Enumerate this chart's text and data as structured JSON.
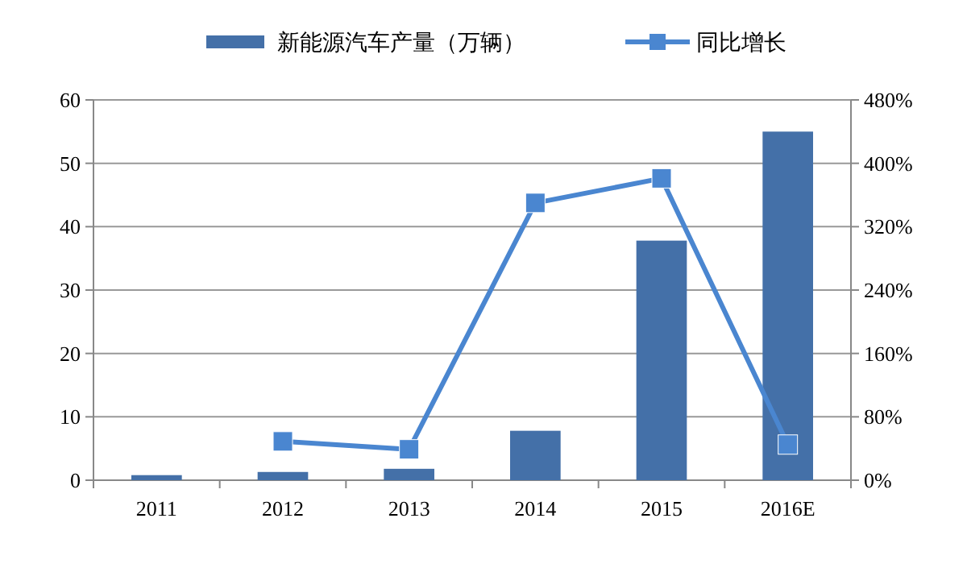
{
  "chart_data": {
    "type": "bar",
    "categories": [
      "2011",
      "2012",
      "2013",
      "2014",
      "2015",
      "2016E"
    ],
    "series": [
      {
        "name": "新能源汽车产量（万辆）",
        "color": "#4470a8",
        "values": [
          0.8,
          1.3,
          1.8,
          7.8,
          37.8,
          55
        ]
      },
      {
        "name": "同比增长",
        "type": "line",
        "axis": "y2",
        "color": "#4a86d0",
        "marker": "square",
        "values": [
          null,
          49,
          39,
          350,
          381,
          45
        ]
      }
    ],
    "ylim": [
      0,
      60
    ],
    "yticks": [
      0,
      10,
      20,
      30,
      40,
      50,
      60
    ],
    "y2lim": [
      0,
      480
    ],
    "y2ticks": [
      {
        "value": 0,
        "label": "0%"
      },
      {
        "value": 80,
        "label": "80%"
      },
      {
        "value": 160,
        "label": "160%"
      },
      {
        "value": 240,
        "label": "240%"
      },
      {
        "value": 320,
        "label": "320%"
      },
      {
        "value": 400,
        "label": "400%"
      },
      {
        "value": 480,
        "label": "480%"
      }
    ],
    "grid": "y",
    "legend": "top"
  }
}
